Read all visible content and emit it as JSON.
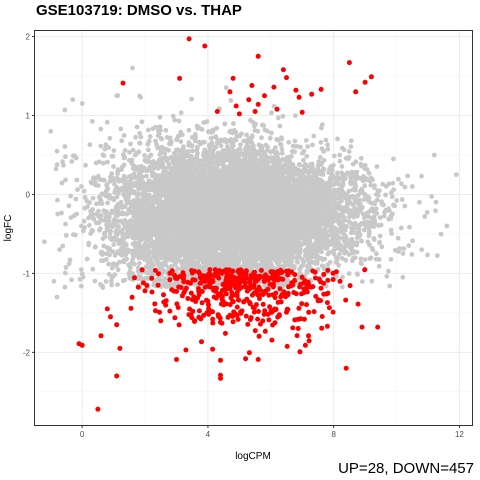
{
  "chart_data": {
    "type": "scatter",
    "title": "GSE103719: DMSO vs. THAP",
    "caption": "UP=28, DOWN=457",
    "xlabel": "logCPM",
    "ylabel": "logFC",
    "xlim": [
      -1.5,
      12.4
    ],
    "ylim": [
      -2.92,
      2.07
    ],
    "x_ticks": [
      0,
      4,
      8,
      12
    ],
    "y_ticks": [
      -2,
      -1,
      0,
      1,
      2
    ],
    "x_tick_labels": [
      "0",
      "4",
      "8",
      "12"
    ],
    "y_tick_labels": [
      "-2",
      "-1",
      "0",
      "1",
      "2"
    ],
    "grid": true,
    "colors": {
      "not_significant": "#c8c8c8",
      "significant": "#ff0000",
      "panel_border": "#333333",
      "grid_major": "#ebebeb",
      "grid_minor": "#f5f5f5"
    },
    "series": [
      {
        "role": "not_significant",
        "description_count": 12000,
        "center_x": 4.8,
        "center_y": -0.25,
        "approx_x_range": [
          -0.9,
          11.9
        ],
        "approx_y_range": [
          -1.2,
          1.85
        ]
      },
      {
        "role": "significant_up",
        "count": 28,
        "points": [
          [
            3.4,
            1.97
          ],
          [
            3.9,
            1.88
          ],
          [
            5.6,
            1.75
          ],
          [
            6.4,
            1.58
          ],
          [
            8.5,
            1.67
          ],
          [
            9.2,
            1.49
          ],
          [
            4.8,
            1.47
          ],
          [
            6.5,
            1.48
          ],
          [
            3.1,
            1.47
          ],
          [
            9.0,
            1.42
          ],
          [
            5.4,
            1.38
          ],
          [
            6.1,
            1.36
          ],
          [
            7.6,
            1.33
          ],
          [
            6.8,
            1.32
          ],
          [
            8.7,
            1.3
          ],
          [
            4.7,
            1.3
          ],
          [
            7.3,
            1.27
          ],
          [
            5.8,
            1.25
          ],
          [
            6.9,
            1.23
          ],
          [
            5.3,
            1.2
          ],
          [
            5.6,
            1.14
          ],
          [
            1.3,
            1.41
          ],
          [
            4.3,
            1.05
          ],
          [
            5.5,
            1.05
          ],
          [
            7.0,
            1.04
          ],
          [
            5.0,
            1.02
          ],
          [
            6.2,
            1.08
          ],
          [
            4.9,
            1.12
          ]
        ]
      },
      {
        "role": "significant_down",
        "count": 457,
        "highlight_points": [
          [
            0.5,
            -2.72
          ],
          [
            1.1,
            -2.3
          ],
          [
            4.4,
            -2.29
          ],
          [
            4.4,
            -2.33
          ],
          [
            8.4,
            -2.2
          ],
          [
            -0.1,
            -1.89
          ],
          [
            0.0,
            -1.91
          ],
          [
            0.6,
            -1.79
          ],
          [
            1.2,
            -1.95
          ],
          [
            3.3,
            -1.97
          ],
          [
            4.4,
            -2.1
          ],
          [
            5.2,
            -2.08
          ],
          [
            5.6,
            -2.09
          ],
          [
            3.0,
            -2.09
          ],
          [
            7.1,
            -1.91
          ],
          [
            8.9,
            -1.68
          ],
          [
            9.4,
            -1.68
          ],
          [
            7.8,
            -1.67
          ],
          [
            2.5,
            -1.6
          ],
          [
            0.9,
            -1.55
          ],
          [
            2.0,
            -1.22
          ],
          [
            8.2,
            -1.1
          ],
          [
            7.8,
            -1.37
          ],
          [
            0.8,
            -1.45
          ],
          [
            1.1,
            -1.65
          ]
        ]
      }
    ]
  }
}
